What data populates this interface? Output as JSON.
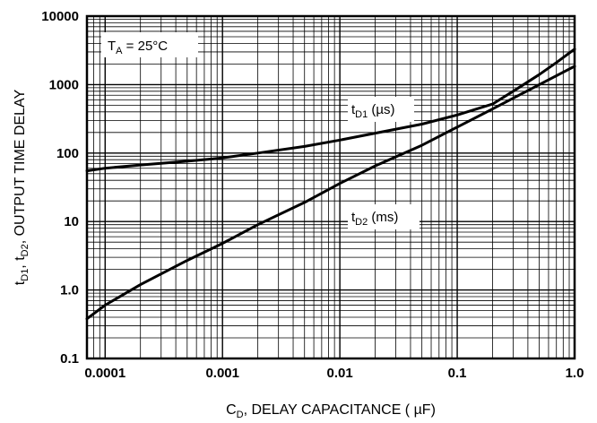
{
  "chart_data": {
    "type": "line",
    "x_scale": "log",
    "y_scale": "log",
    "xlim": [
      7e-05,
      1.0
    ],
    "ylim": [
      0.1,
      10000
    ],
    "grid": true,
    "x_ticks": [
      {
        "value": 0.0001,
        "label": "0.0001"
      },
      {
        "value": 0.001,
        "label": "0.001"
      },
      {
        "value": 0.01,
        "label": "0.01"
      },
      {
        "value": 0.1,
        "label": "0.1"
      },
      {
        "value": 1.0,
        "label": "1.0"
      }
    ],
    "y_ticks": [
      {
        "value": 0.1,
        "label": "0.1"
      },
      {
        "value": 1,
        "label": "1.0"
      },
      {
        "value": 10,
        "label": "10"
      },
      {
        "value": 100,
        "label": "100"
      },
      {
        "value": 1000,
        "label": "1000"
      },
      {
        "value": 10000,
        "label": "10000"
      }
    ],
    "xlabel": {
      "main": "C",
      "sub": "D",
      "rest": ", DELAY CAPACITANCE ( µF)"
    },
    "ylabel": {
      "p1": "t",
      "s1": "D1",
      "p2": ", t",
      "s2": "D2",
      "p3": ", OUTPUT TIME DELAY"
    },
    "condition": {
      "main": "T",
      "sub": "A",
      "rest": " = 25°C"
    },
    "series": [
      {
        "name": "tD1 (µs)",
        "label": {
          "main": "t",
          "sub": "D1",
          "rest": " (µs)"
        },
        "x": [
          7e-05,
          0.0001,
          0.0002,
          0.0005,
          0.001,
          0.002,
          0.005,
          0.01,
          0.02,
          0.05,
          0.1,
          0.2,
          0.3,
          0.5,
          0.7,
          1.0
        ],
        "y": [
          55,
          60,
          67,
          76,
          85,
          100,
          125,
          155,
          195,
          265,
          360,
          520,
          800,
          1400,
          2100,
          3300
        ]
      },
      {
        "name": "tD2 (ms)",
        "label": {
          "main": "t",
          "sub": "D2",
          "rest": " (ms)"
        },
        "x": [
          7e-05,
          0.0001,
          0.0002,
          0.0005,
          0.001,
          0.002,
          0.005,
          0.01,
          0.02,
          0.05,
          0.1,
          0.2,
          0.5,
          1.0
        ],
        "y": [
          0.38,
          0.6,
          1.2,
          2.7,
          4.8,
          9,
          19,
          36,
          65,
          130,
          240,
          440,
          1000,
          1850
        ]
      }
    ]
  }
}
